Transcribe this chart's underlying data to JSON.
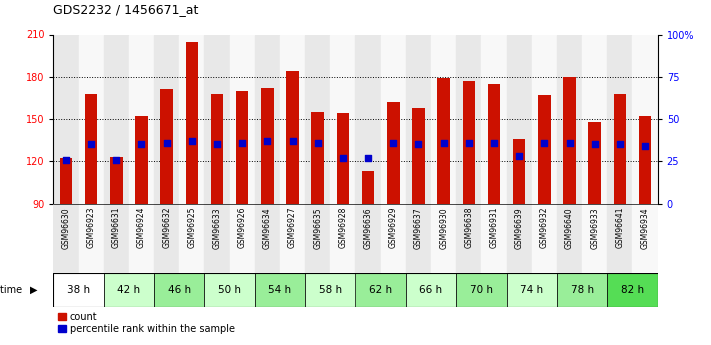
{
  "title": "GDS2232 / 1456671_at",
  "samples": [
    "GSM96630",
    "GSM96923",
    "GSM96631",
    "GSM96924",
    "GSM96632",
    "GSM96925",
    "GSM96633",
    "GSM96926",
    "GSM96634",
    "GSM96927",
    "GSM96635",
    "GSM96928",
    "GSM96636",
    "GSM96929",
    "GSM96637",
    "GSM96930",
    "GSM96638",
    "GSM96931",
    "GSM96639",
    "GSM96932",
    "GSM96640",
    "GSM96933",
    "GSM96641",
    "GSM96934"
  ],
  "counts": [
    122,
    168,
    123,
    152,
    171,
    205,
    168,
    170,
    172,
    184,
    155,
    154,
    113,
    162,
    158,
    179,
    177,
    175,
    136,
    167,
    180,
    148,
    168,
    152
  ],
  "percentile_ranks": [
    26,
    35,
    26,
    35,
    36,
    37,
    35,
    36,
    37,
    37,
    36,
    27,
    27,
    36,
    35,
    36,
    36,
    36,
    28,
    36,
    36,
    35,
    35,
    34
  ],
  "time_groups": [
    {
      "label": "38 h",
      "indices": [
        0,
        1
      ]
    },
    {
      "label": "42 h",
      "indices": [
        2,
        3
      ]
    },
    {
      "label": "46 h",
      "indices": [
        4,
        5
      ]
    },
    {
      "label": "50 h",
      "indices": [
        6,
        7
      ]
    },
    {
      "label": "54 h",
      "indices": [
        8,
        9
      ]
    },
    {
      "label": "58 h",
      "indices": [
        10,
        11
      ]
    },
    {
      "label": "62 h",
      "indices": [
        12,
        13
      ]
    },
    {
      "label": "66 h",
      "indices": [
        14,
        15
      ]
    },
    {
      "label": "70 h",
      "indices": [
        16,
        17
      ]
    },
    {
      "label": "74 h",
      "indices": [
        18,
        19
      ]
    },
    {
      "label": "78 h",
      "indices": [
        20,
        21
      ]
    },
    {
      "label": "82 h",
      "indices": [
        22,
        23
      ]
    }
  ],
  "time_group_colors": [
    "#ffffff",
    "#ccffcc",
    "#99ee99",
    "#ccffcc",
    "#99ee99",
    "#ccffcc",
    "#99ee99",
    "#ccffcc",
    "#99ee99",
    "#ccffcc",
    "#99ee99",
    "#55dd55"
  ],
  "col_bg_even": "#e8e8e8",
  "col_bg_odd": "#f8f8f8",
  "bar_color": "#cc1100",
  "dot_color": "#0000cc",
  "ymin": 90,
  "ymax": 210,
  "yticks": [
    90,
    120,
    150,
    180,
    210
  ],
  "right_yticks": [
    0,
    25,
    50,
    75,
    100
  ],
  "right_ylabels": [
    "0",
    "25",
    "50",
    "75",
    "100%"
  ]
}
